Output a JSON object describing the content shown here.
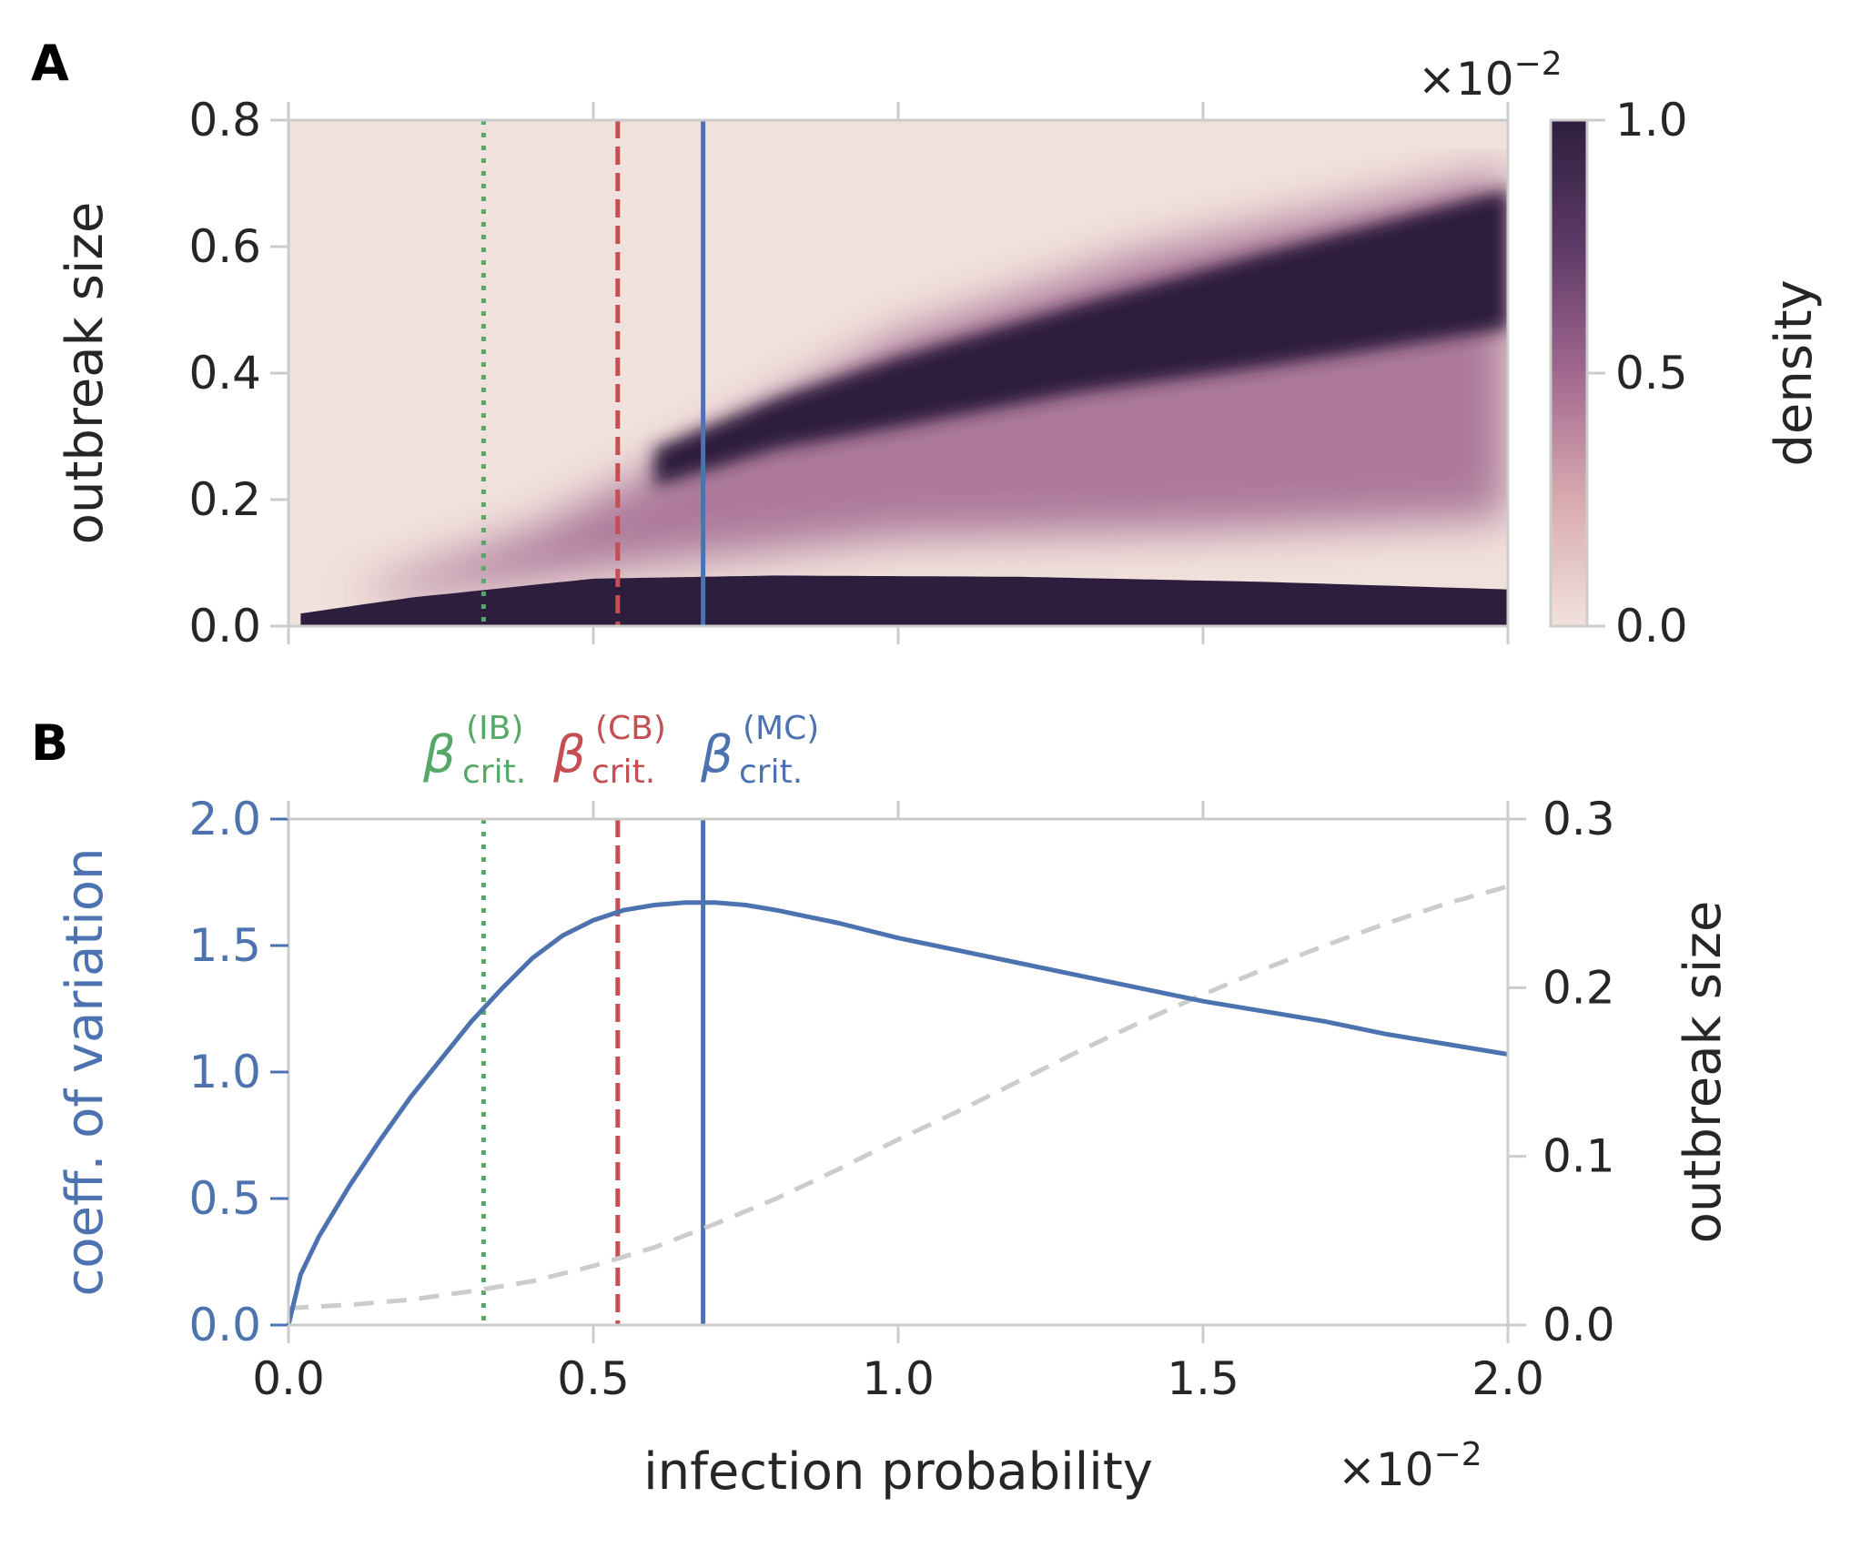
{
  "colors": {
    "heat_low": "#f1e1dc",
    "heat_mid": "#a1688f",
    "heat_high": "#2d1e3e",
    "ib": "#55a868",
    "cb": "#c44e52",
    "mc": "#4c72b0",
    "outbreak_line": "#cccccc",
    "axis": "#cccccc",
    "text": "#262626"
  },
  "panels": {
    "a_label": "A",
    "b_label": "B"
  },
  "annotations": {
    "beta_symbol": "β",
    "crit_sub": "crit.",
    "ib_sup": "(IB)",
    "cb_sup": "(CB)",
    "mc_sup": "(MC)",
    "offset_times": "×10",
    "offset_exp": "−2"
  },
  "chart_data": [
    {
      "type": "heatmap",
      "panel": "A",
      "ylabel": "outbreak size",
      "y_ticks": [
        "0.0",
        "0.2",
        "0.4",
        "0.6",
        "0.8"
      ],
      "ylim": [
        0,
        0.8
      ],
      "xlim": [
        0,
        2.0
      ],
      "x_scale_note": "×10−2",
      "x_ticks_shown": false,
      "colorbar": {
        "label": "density",
        "ticks": [
          "0.0",
          "0.5",
          "1.0"
        ],
        "range": [
          0,
          1.0
        ],
        "colors": [
          "#f1e1dc",
          "#d9aab0",
          "#a1688f",
          "#5f3a68",
          "#2d1e3e"
        ]
      },
      "heatmap_description": {
        "low_band_top": [
          [
            0.02,
            0.02
          ],
          [
            0.2,
            0.045
          ],
          [
            0.5,
            0.075
          ],
          [
            0.8,
            0.08
          ],
          [
            1.2,
            0.078
          ],
          [
            1.6,
            0.07
          ],
          [
            2.0,
            0.058
          ]
        ],
        "upper_band_center": [
          [
            0.6,
            0.25
          ],
          [
            0.8,
            0.32
          ],
          [
            1.0,
            0.37
          ],
          [
            1.3,
            0.44
          ],
          [
            1.6,
            0.5
          ],
          [
            2.0,
            0.58
          ]
        ],
        "upper_band_halfwidth": [
          [
            0.6,
            0.03
          ],
          [
            0.8,
            0.04
          ],
          [
            1.0,
            0.055
          ],
          [
            1.3,
            0.07
          ],
          [
            1.6,
            0.09
          ],
          [
            2.0,
            0.11
          ]
        ],
        "spread_lower_edge": [
          [
            0.2,
            0.05
          ],
          [
            0.6,
            0.1
          ],
          [
            1.0,
            0.14
          ],
          [
            1.5,
            0.15
          ],
          [
            2.0,
            0.17
          ]
        ],
        "spread_upper_edge": [
          [
            0.1,
            0.05
          ],
          [
            0.4,
            0.15
          ],
          [
            0.7,
            0.3
          ],
          [
            1.0,
            0.46
          ],
          [
            1.4,
            0.59
          ],
          [
            2.0,
            0.72
          ]
        ]
      },
      "vlines": [
        {
          "x": 0.32,
          "style": "dotted",
          "color": "#55a868"
        },
        {
          "x": 0.54,
          "style": "dashed",
          "color": "#c44e52"
        },
        {
          "x": 0.68,
          "style": "solid",
          "color": "#4c72b0"
        }
      ]
    },
    {
      "type": "line",
      "panel": "B",
      "xlabel": "infection probability",
      "x_ticks": [
        "0.0",
        "0.5",
        "1.0",
        "1.5",
        "2.0"
      ],
      "xlim": [
        0,
        2.0
      ],
      "x_scale_note": "×10−2",
      "ylabel_left": "coeff. of variation",
      "y_ticks_left": [
        "0.0",
        "0.5",
        "1.0",
        "1.5",
        "2.0"
      ],
      "ylim_left": [
        0,
        2.0
      ],
      "ylabel_right": "outbreak size",
      "y_ticks_right": [
        "0.0",
        "0.1",
        "0.2",
        "0.3"
      ],
      "ylim_right": [
        0,
        0.3
      ],
      "series": [
        {
          "axis": "left",
          "style": "solid",
          "color": "#4c72b0",
          "x": [
            0.0,
            0.02,
            0.05,
            0.1,
            0.15,
            0.2,
            0.25,
            0.3,
            0.35,
            0.4,
            0.45,
            0.5,
            0.55,
            0.6,
            0.65,
            0.7,
            0.75,
            0.8,
            0.9,
            1.0,
            1.1,
            1.2,
            1.3,
            1.4,
            1.5,
            1.6,
            1.7,
            1.8,
            1.9,
            2.0
          ],
          "y": [
            0.0,
            0.2,
            0.35,
            0.55,
            0.73,
            0.9,
            1.05,
            1.2,
            1.33,
            1.45,
            1.54,
            1.6,
            1.64,
            1.66,
            1.67,
            1.67,
            1.66,
            1.64,
            1.59,
            1.53,
            1.48,
            1.43,
            1.38,
            1.33,
            1.28,
            1.24,
            1.2,
            1.15,
            1.11,
            1.07
          ]
        },
        {
          "axis": "right",
          "style": "dashed",
          "color": "#cccccc",
          "x": [
            0.0,
            0.1,
            0.2,
            0.3,
            0.4,
            0.5,
            0.6,
            0.7,
            0.8,
            0.9,
            1.0,
            1.1,
            1.2,
            1.3,
            1.4,
            1.5,
            1.6,
            1.7,
            1.8,
            1.9,
            2.0
          ],
          "y": [
            0.01,
            0.012,
            0.015,
            0.02,
            0.026,
            0.035,
            0.046,
            0.06,
            0.075,
            0.092,
            0.11,
            0.127,
            0.145,
            0.163,
            0.18,
            0.196,
            0.211,
            0.225,
            0.238,
            0.25,
            0.26
          ]
        }
      ],
      "vlines": [
        {
          "x": 0.32,
          "style": "dotted",
          "color": "#55a868"
        },
        {
          "x": 0.54,
          "style": "dashed",
          "color": "#c44e52"
        },
        {
          "x": 0.68,
          "style": "solid",
          "color": "#4c72b0"
        }
      ]
    }
  ]
}
